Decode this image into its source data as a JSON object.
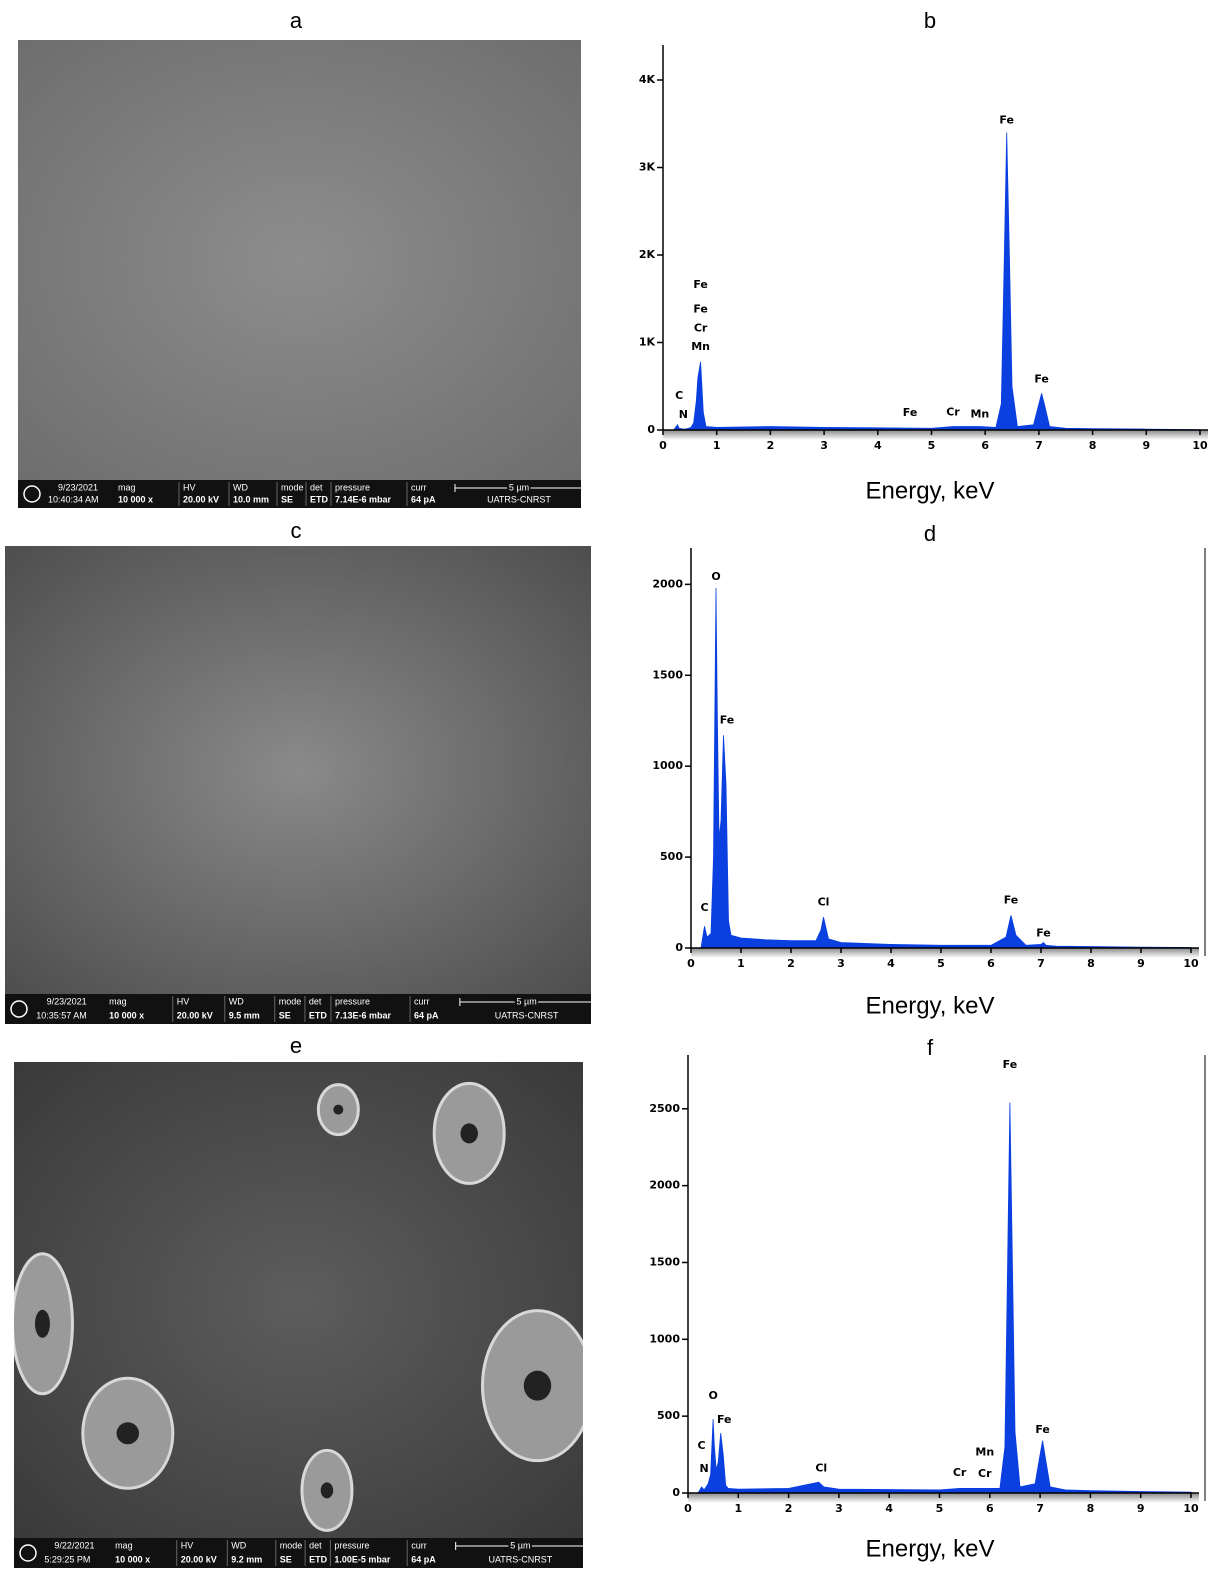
{
  "panels": [
    {
      "label": "a",
      "date": "9/23/2021",
      "time": "10:40:34 AM",
      "fields": [
        {
          "name": "mag",
          "value": "10 000 x"
        },
        {
          "name": "HV",
          "value": "20.00 kV"
        },
        {
          "name": "WD",
          "value": "10.0 mm"
        },
        {
          "name": "mode",
          "value": "SE"
        },
        {
          "name": "det",
          "value": "ETD"
        },
        {
          "name": "pressure",
          "value": "7.14E-6 mbar"
        },
        {
          "name": "curr",
          "value": "64 pA"
        }
      ],
      "scale": "5 µm",
      "lab": "UATRS-CNRST"
    },
    {
      "label": "c",
      "date": "9/23/2021",
      "time": "10:35:57 AM",
      "fields": [
        {
          "name": "mag",
          "value": "10 000 x"
        },
        {
          "name": "HV",
          "value": "20.00 kV"
        },
        {
          "name": "WD",
          "value": "9.5 mm"
        },
        {
          "name": "mode",
          "value": "SE"
        },
        {
          "name": "det",
          "value": "ETD"
        },
        {
          "name": "pressure",
          "value": "7.13E-6 mbar"
        },
        {
          "name": "curr",
          "value": "64 pA"
        }
      ],
      "scale": "5 µm",
      "lab": "UATRS-CNRST"
    },
    {
      "label": "e",
      "date": "9/22/2021",
      "time": "5:29:25 PM",
      "fields": [
        {
          "name": "mag",
          "value": "10 000 x"
        },
        {
          "name": "HV",
          "value": "20.00 kV"
        },
        {
          "name": "WD",
          "value": "9.2 mm"
        },
        {
          "name": "mode",
          "value": "SE"
        },
        {
          "name": "det",
          "value": "ETD"
        },
        {
          "name": "pressure",
          "value": "1.00E-5 mbar"
        },
        {
          "name": "curr",
          "value": "64 pA"
        }
      ],
      "scale": "5 µm",
      "lab": "UATRS-CNRST"
    }
  ],
  "chart_data": [
    {
      "type": "area",
      "title": "b",
      "x_label": "Energy, keV",
      "color": "#0a3fe0",
      "x": [
        0.0,
        0.2,
        0.27,
        0.3,
        0.39,
        0.45,
        0.52,
        0.57,
        0.62,
        0.65,
        0.7,
        0.75,
        0.8,
        1.0,
        2,
        3,
        4,
        5,
        5.4,
        5.9,
        6.2,
        6.3,
        6.35,
        6.4,
        6.45,
        6.5,
        6.6,
        6.9,
        7.0,
        7.05,
        7.1,
        7.2,
        7.5,
        8,
        9,
        10
      ],
      "values": [
        0,
        0,
        60,
        20,
        10,
        15,
        30,
        80,
        330,
        600,
        780,
        200,
        40,
        30,
        40,
        30,
        25,
        20,
        40,
        40,
        30,
        300,
        1800,
        3400,
        2000,
        500,
        40,
        60,
        300,
        420,
        300,
        40,
        20,
        15,
        10,
        5
      ],
      "xlim": [
        0,
        10
      ],
      "xticks": [
        0,
        1,
        2,
        3,
        4,
        5,
        6,
        7,
        8,
        9,
        10
      ],
      "ylim": [
        0,
        4400
      ],
      "yticks": [
        0,
        {
          "value": 1000,
          "label": "1K"
        },
        {
          "value": 2000,
          "label": "2K"
        },
        {
          "value": 3000,
          "label": "3K"
        },
        {
          "value": 4000,
          "label": "4K"
        }
      ],
      "annotations": [
        {
          "text": "C",
          "x": 0.3,
          "y": 390
        },
        {
          "text": "N",
          "x": 0.38,
          "y": 170
        },
        {
          "text": "Fe",
          "x": 0.7,
          "y": 1660
        },
        {
          "text": "Fe",
          "x": 0.7,
          "y": 1380
        },
        {
          "text": "Cr",
          "x": 0.7,
          "y": 1160
        },
        {
          "text": "Mn",
          "x": 0.7,
          "y": 950
        },
        {
          "text": "Fe",
          "x": 4.6,
          "y": 195
        },
        {
          "text": "Cr",
          "x": 5.4,
          "y": 200
        },
        {
          "text": "Mn",
          "x": 5.9,
          "y": 180
        },
        {
          "text": "Fe",
          "x": 6.4,
          "y": 3540
        },
        {
          "text": "Fe",
          "x": 7.05,
          "y": 580
        }
      ]
    },
    {
      "type": "area",
      "title": "d",
      "x_label": "Energy, keV",
      "color": "#0a3fe0",
      "x": [
        0,
        0.2,
        0.27,
        0.32,
        0.4,
        0.45,
        0.5,
        0.525,
        0.56,
        0.6,
        0.65,
        0.7,
        0.75,
        0.8,
        1.0,
        1.5,
        2.0,
        2.5,
        2.6,
        2.65,
        2.75,
        3,
        4,
        5,
        6,
        6.3,
        6.4,
        6.5,
        6.7,
        7.0,
        7.05,
        7.1,
        7.3,
        8,
        9,
        10
      ],
      "values": [
        0,
        0,
        120,
        60,
        80,
        500,
        1980,
        1300,
        600,
        700,
        1170,
        900,
        150,
        70,
        55,
        45,
        40,
        40,
        100,
        170,
        50,
        30,
        20,
        15,
        15,
        60,
        180,
        70,
        15,
        20,
        30,
        15,
        10,
        8,
        5,
        3
      ],
      "xlim": [
        0,
        10
      ],
      "xticks": [
        0,
        1,
        2,
        3,
        4,
        5,
        6,
        7,
        8,
        9,
        10
      ],
      "ylim": [
        0,
        2200
      ],
      "yticks": [
        0,
        500,
        1000,
        1500,
        2000
      ],
      "annotations": [
        {
          "text": "O",
          "x": 0.5,
          "y": 2040
        },
        {
          "text": "Fe",
          "x": 0.72,
          "y": 1250
        },
        {
          "text": "C",
          "x": 0.27,
          "y": 220
        },
        {
          "text": "Cl",
          "x": 2.65,
          "y": 250
        },
        {
          "text": "Fe",
          "x": 6.4,
          "y": 260
        },
        {
          "text": "Fe",
          "x": 7.05,
          "y": 80
        }
      ]
    },
    {
      "type": "area",
      "title": "f",
      "x_label": "Energy, keV",
      "color": "#0a3fe0",
      "x": [
        0,
        0.2,
        0.27,
        0.32,
        0.4,
        0.45,
        0.5,
        0.525,
        0.56,
        0.6,
        0.65,
        0.7,
        0.75,
        0.8,
        1.0,
        2,
        2.6,
        2.7,
        3,
        5,
        5.4,
        5.9,
        6.2,
        6.3,
        6.35,
        6.4,
        6.45,
        6.5,
        6.6,
        6.9,
        7.0,
        7.05,
        7.1,
        7.2,
        7.5,
        8,
        9,
        10
      ],
      "values": [
        0,
        0,
        40,
        20,
        60,
        120,
        480,
        300,
        150,
        200,
        390,
        250,
        50,
        30,
        25,
        30,
        70,
        40,
        25,
        20,
        30,
        30,
        30,
        300,
        1400,
        2540,
        1500,
        400,
        40,
        60,
        250,
        340,
        240,
        40,
        20,
        15,
        10,
        5
      ],
      "xlim": [
        0,
        10
      ],
      "xticks": [
        0,
        1,
        2,
        3,
        4,
        5,
        6,
        7,
        8,
        9,
        10
      ],
      "ylim": [
        0,
        2850
      ],
      "yticks": [
        0,
        500,
        1000,
        1500,
        2000,
        2500
      ],
      "annotations": [
        {
          "text": "Fe",
          "x": 6.4,
          "y": 2785
        },
        {
          "text": "O",
          "x": 0.5,
          "y": 630
        },
        {
          "text": "Fe",
          "x": 0.72,
          "y": 475
        },
        {
          "text": "C",
          "x": 0.27,
          "y": 305
        },
        {
          "text": "N",
          "x": 0.32,
          "y": 155
        },
        {
          "text": "Cl",
          "x": 2.65,
          "y": 160
        },
        {
          "text": "Cr",
          "x": 5.4,
          "y": 130
        },
        {
          "text": "Mn",
          "x": 5.9,
          "y": 265
        },
        {
          "text": "Cr",
          "x": 5.9,
          "y": 125
        },
        {
          "text": "Fe",
          "x": 7.05,
          "y": 410
        }
      ]
    }
  ]
}
